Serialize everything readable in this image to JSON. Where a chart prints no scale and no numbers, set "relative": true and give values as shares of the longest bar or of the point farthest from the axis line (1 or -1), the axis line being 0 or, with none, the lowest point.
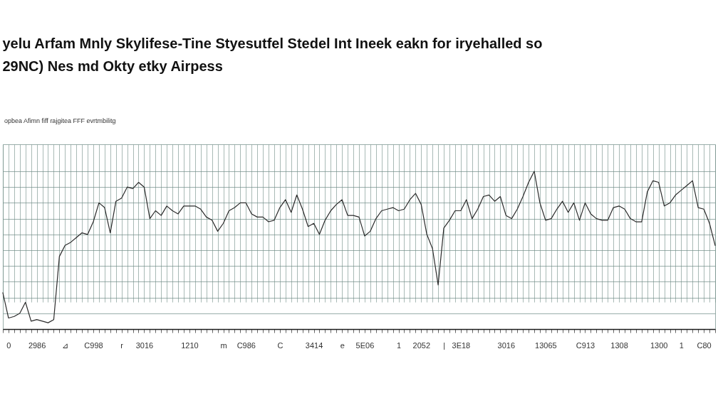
{
  "chart_data": {
    "type": "line",
    "title": "yelu Arfam Mnly Skylifese-Tine Styesutfel Stedel Int Ineek eakn for iryehalled so",
    "subtitle": "29NC) Nes md Okty etky Airpess",
    "annotations": [
      "opbea Afimn fiff rajgitea FFF evrtmbilitg"
    ],
    "relative": true,
    "grid": true,
    "categories": [
      null,
      "0",
      null,
      null,
      null,
      null,
      "2986",
      null,
      null,
      null,
      null,
      "⊿",
      null,
      null,
      null,
      null,
      "C998",
      null,
      null,
      null,
      null,
      "r",
      null,
      null,
      null,
      "3016",
      null,
      null,
      null,
      null,
      null,
      null,
      null,
      "1210",
      null,
      null,
      null,
      null,
      null,
      "m",
      null,
      null,
      null,
      "C986",
      null,
      null,
      null,
      null,
      null,
      "C",
      null,
      null,
      null,
      null,
      null,
      "3414",
      null,
      null,
      null,
      null,
      "e",
      null,
      null,
      null,
      "5E06",
      null,
      null,
      null,
      null,
      null,
      "1",
      null,
      null,
      null,
      "2052",
      null,
      null,
      null,
      "|",
      null,
      null,
      "3E18",
      null,
      null,
      null,
      null,
      null,
      null,
      null,
      "3016",
      null,
      null,
      null,
      null,
      null,
      null,
      "13065",
      null,
      null,
      null,
      null,
      null,
      null,
      "C913",
      null,
      null,
      null,
      null,
      null,
      "1308",
      null,
      null,
      null,
      null,
      null,
      null,
      "1300",
      null,
      null,
      null,
      "1",
      null,
      null,
      null,
      "C80",
      null,
      null
    ],
    "series": [
      {
        "color": "#2b2b2b",
        "values": [
          0.23,
          0.07,
          0.08,
          0.1,
          0.17,
          0.05,
          0.06,
          0.05,
          0.04,
          0.06,
          0.46,
          0.53,
          0.55,
          0.58,
          0.61,
          0.6,
          0.68,
          0.8,
          0.77,
          0.61,
          0.81,
          0.83,
          0.9,
          0.89,
          0.93,
          0.9,
          0.7,
          0.75,
          0.72,
          0.78,
          0.75,
          0.73,
          0.78,
          0.78,
          0.78,
          0.76,
          0.71,
          0.69,
          0.62,
          0.67,
          0.75,
          0.77,
          0.8,
          0.8,
          0.73,
          0.71,
          0.71,
          0.68,
          0.69,
          0.77,
          0.82,
          0.74,
          0.85,
          0.76,
          0.65,
          0.67,
          0.6,
          0.69,
          0.75,
          0.79,
          0.82,
          0.72,
          0.72,
          0.71,
          0.59,
          0.62,
          0.7,
          0.75,
          0.76,
          0.77,
          0.75,
          0.76,
          0.82,
          0.86,
          0.79,
          0.6,
          0.51,
          0.28,
          0.64,
          0.69,
          0.75,
          0.75,
          0.82,
          0.7,
          0.76,
          0.84,
          0.85,
          0.81,
          0.84,
          0.72,
          0.7,
          0.76,
          0.84,
          0.93,
          1.0,
          0.8,
          0.69,
          0.7,
          0.76,
          0.81,
          0.74,
          0.8,
          0.69,
          0.8,
          0.73,
          0.7,
          0.69,
          0.69,
          0.77,
          0.78,
          0.76,
          0.7,
          0.68,
          0.68,
          0.87,
          0.94,
          0.93,
          0.78,
          0.8,
          0.85,
          0.88,
          0.91,
          0.94,
          0.77,
          0.76,
          0.67,
          0.53
        ]
      }
    ]
  }
}
